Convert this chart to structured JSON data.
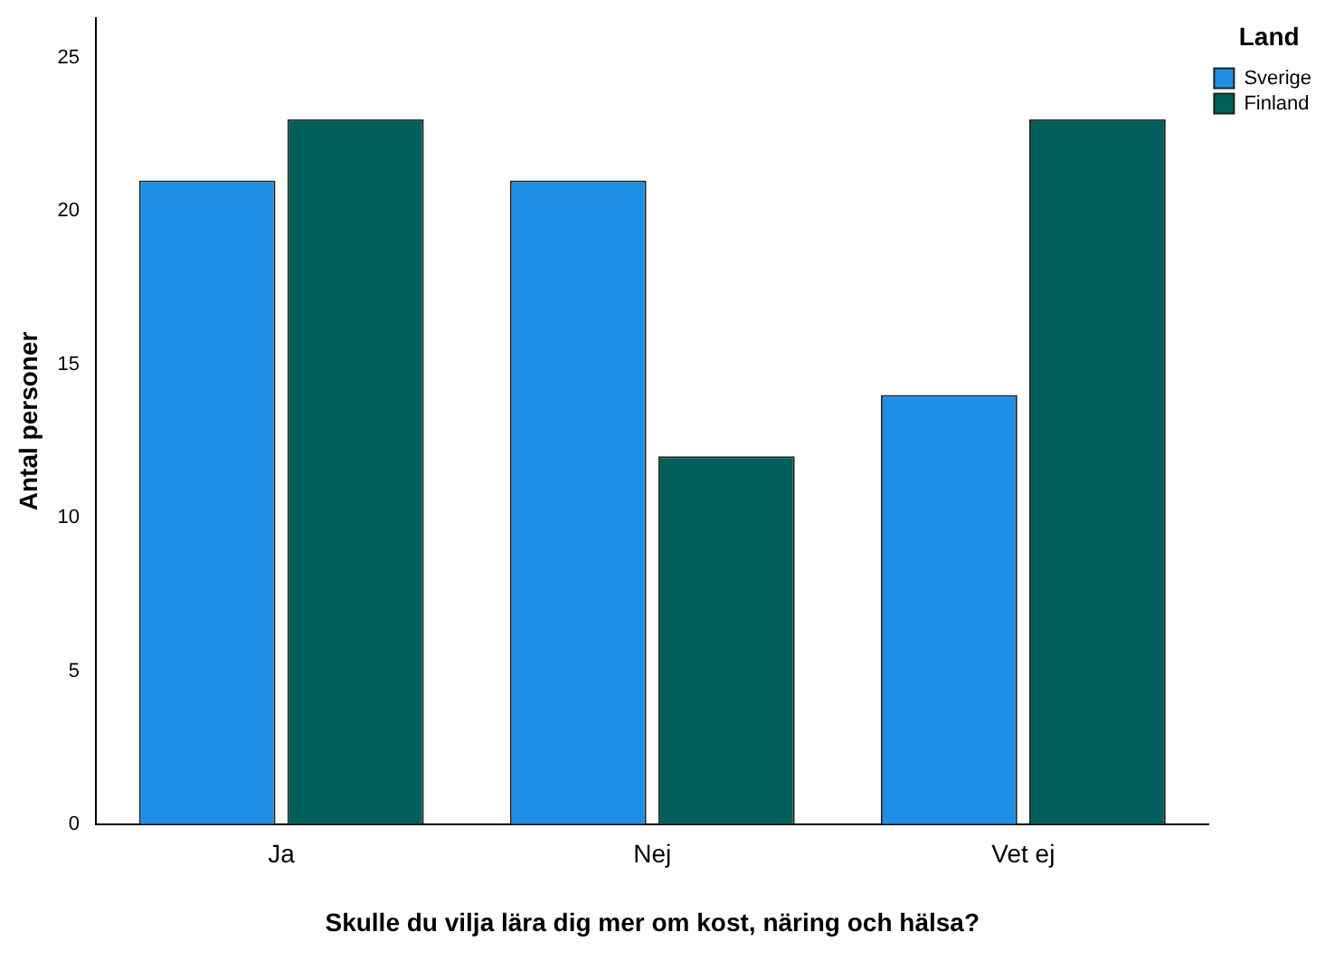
{
  "chart_data": {
    "type": "bar",
    "xlabel": "Skulle du vilja lära dig mer om kost, näring och hälsa?",
    "ylabel": "Antal personer",
    "legend_title": "Land",
    "categories": [
      "Ja",
      "Nej",
      "Vet ej"
    ],
    "series": [
      {
        "name": "Sverige",
        "color": "#1f8fe6",
        "values": [
          21,
          21,
          14
        ]
      },
      {
        "name": "Finland",
        "color": "#005f5a",
        "values": [
          23,
          12,
          23
        ]
      }
    ],
    "ylim": [
      0,
      26.3
    ],
    "yticks": [
      0,
      5,
      10,
      15,
      20,
      25
    ],
    "grid": false,
    "legend": "top right"
  }
}
